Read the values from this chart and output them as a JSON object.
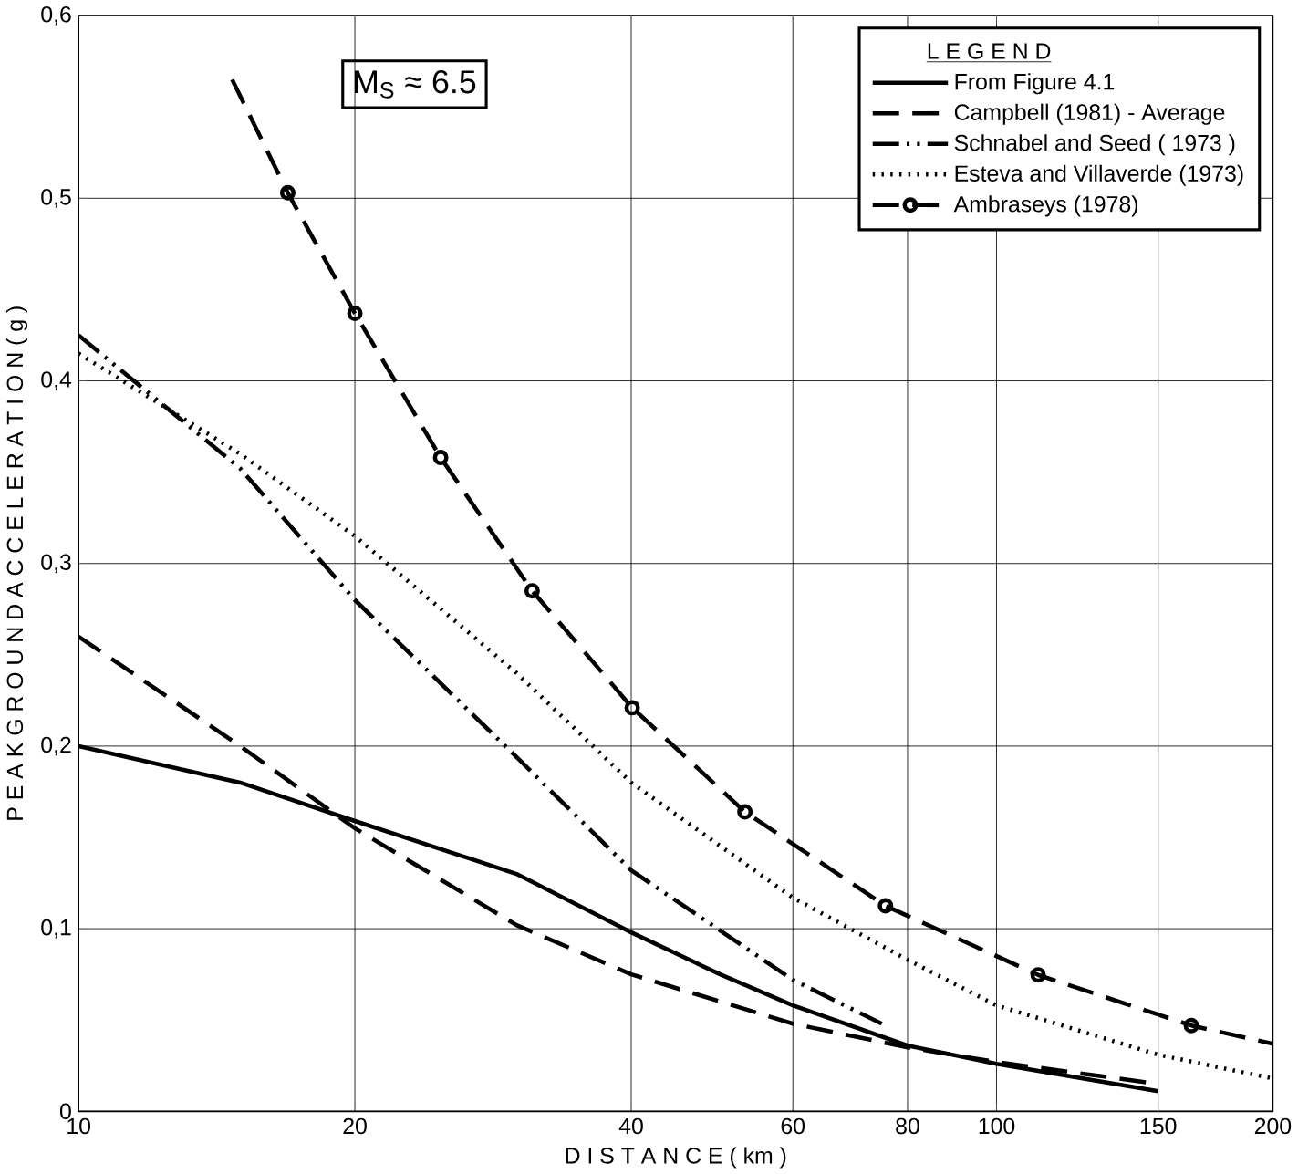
{
  "chart_data": {
    "type": "line",
    "xlabel": "D I S T A N C E   ( km )",
    "ylabel": "P E A K   G R O U N D   A C C E L E R A T I O N  ( g )",
    "legend_title": "L E G E N D",
    "annotations": [
      "M$_{S}$ ≈ 6.5"
    ],
    "log": "x",
    "grid": true,
    "legend": "top right",
    "xlim": [
      10,
      200
    ],
    "xticks": [
      10,
      20,
      40,
      60,
      80,
      100,
      150,
      200
    ],
    "ylim": [
      0,
      0.6
    ],
    "yticks": [
      0,
      {
        "value": 0.1,
        "label": "0,1"
      },
      {
        "value": 0.2,
        "label": "0,2"
      },
      {
        "value": 0.3,
        "label": "0,3"
      },
      {
        "value": 0.4,
        "label": "0,4"
      },
      {
        "value": 0.5,
        "label": "0,5"
      },
      {
        "value": 0.6,
        "label": "0,6"
      }
    ],
    "series": [
      {
        "name": "From  Figure  4.1",
        "color": "#000000",
        "line_style": "solid",
        "marker": "none",
        "x": [
          10,
          15,
          20,
          30,
          40,
          50,
          60,
          80,
          100,
          150
        ],
        "values": [
          0.2,
          0.18,
          0.159,
          0.13,
          0.098,
          0.075,
          0.058,
          0.036,
          0.026,
          0.011
        ]
      },
      {
        "name": "Campbell  (1981) - Average",
        "color": "#000000",
        "line_style": "dashed",
        "marker": "none",
        "x": [
          10,
          15,
          20,
          30,
          40,
          60,
          80,
          100,
          150
        ],
        "values": [
          0.26,
          0.2,
          0.155,
          0.102,
          0.075,
          0.048,
          0.035,
          0.027,
          0.015
        ]
      },
      {
        "name": "Schnabel  and  Seed  ( 1973 )",
        "color": "#000000",
        "line_style": "dashdotdotted",
        "marker": "none",
        "x": [
          10,
          15,
          20,
          30,
          40,
          60,
          75
        ],
        "values": [
          0.425,
          0.352,
          0.28,
          0.194,
          0.132,
          0.072,
          0.048
        ]
      },
      {
        "name": "Esteva  and  Villaverde  (1973)",
        "color": "#000000",
        "line_style": "dotted",
        "marker": "none",
        "x": [
          10,
          15,
          20,
          30,
          40,
          60,
          80,
          100,
          150,
          200
        ],
        "values": [
          0.415,
          0.36,
          0.315,
          0.24,
          0.18,
          0.117,
          0.083,
          0.058,
          0.031,
          0.018
        ]
      },
      {
        "name": "Ambraseys  (1978)",
        "color": "#000000",
        "line_style": "dashed",
        "marker": "circle",
        "x": [
          14.7,
          16.9,
          20,
          24.8,
          31.2,
          40.1,
          53.2,
          75.7,
          111,
          163,
          200
        ],
        "values": [
          0.565,
          0.503,
          0.437,
          0.358,
          0.285,
          0.221,
          0.164,
          0.1125,
          0.0747,
          0.047,
          0.037
        ]
      }
    ]
  }
}
